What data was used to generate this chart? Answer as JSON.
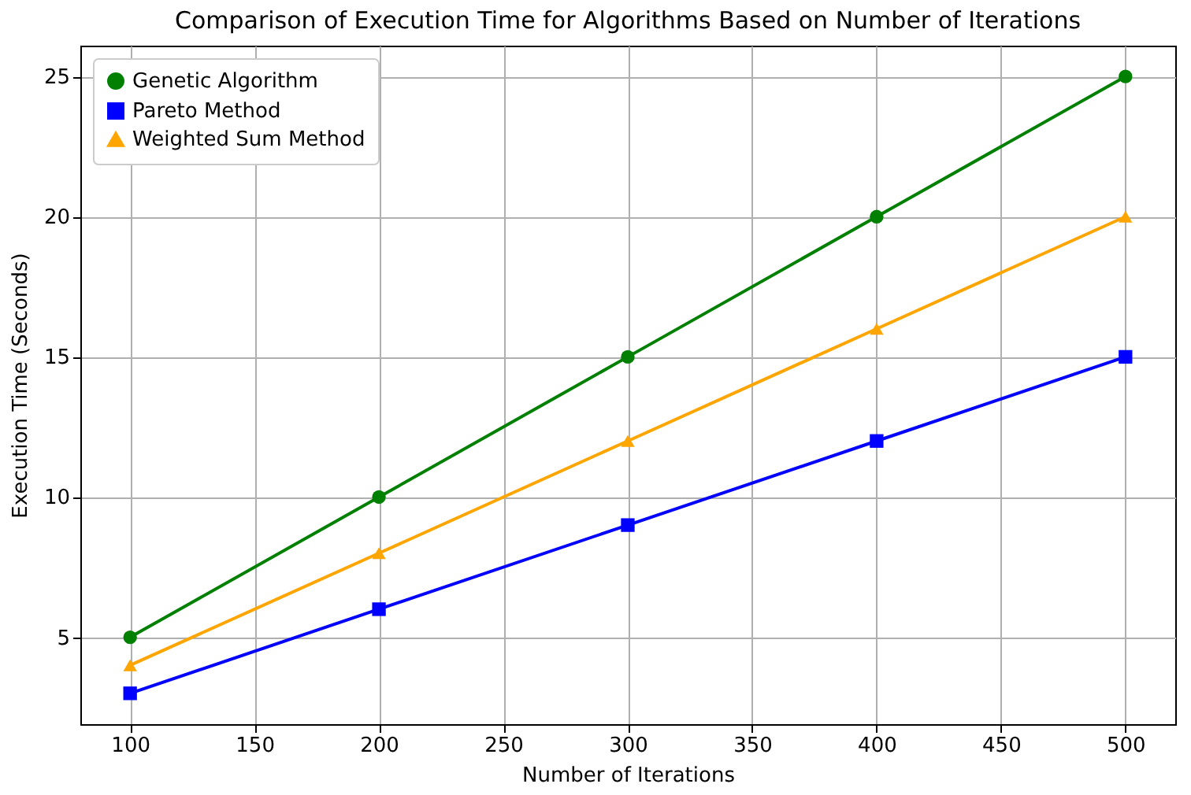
{
  "chart_data": {
    "type": "line",
    "title": "Comparison of Execution Time for Algorithms Based on Number of Iterations",
    "xlabel": "Number of Iterations",
    "ylabel": "Execution Time (Seconds)",
    "x": [
      100,
      200,
      300,
      400,
      500
    ],
    "series": [
      {
        "name": "Genetic Algorithm",
        "color": "#008000",
        "marker": "circle",
        "values": [
          5,
          10,
          15,
          20,
          25
        ]
      },
      {
        "name": "Pareto Method",
        "color": "#0000ff",
        "marker": "square",
        "values": [
          3,
          6,
          9,
          12,
          15
        ]
      },
      {
        "name": "Weighted Sum Method",
        "color": "#ffa500",
        "marker": "triangle",
        "values": [
          4,
          8,
          12,
          16,
          20
        ]
      }
    ],
    "xlim": [
      80,
      520
    ],
    "xticks": [
      100,
      150,
      200,
      250,
      300,
      350,
      400,
      450,
      500
    ],
    "ylim": [
      1.9,
      26.1
    ],
    "yticks": [
      5,
      10,
      15,
      20,
      25
    ],
    "grid": true,
    "legend": "top left",
    "line_style": "solid"
  }
}
